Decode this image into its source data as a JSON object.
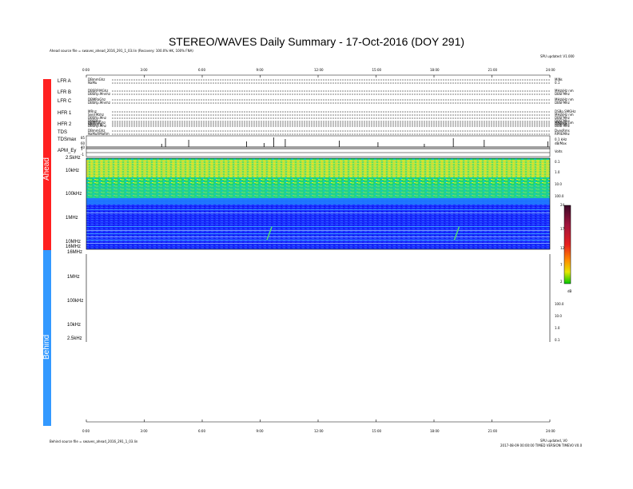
{
  "title": "STEREO/WAVES Daily Summary - 17-Oct-2016 (DOY 291)",
  "ahead_source": "Ahead source file = swaves_ahead_2016_291_1_03.lin (Recovery: 100.0% HK, 100% FNA)",
  "behind_source": "Behind source file = swaves_ahead_2016_291_1_03.lin",
  "top_right_note": "SPU updated: V1.000",
  "bottom_right_note1": "SPU updated, V0",
  "bottom_right_note2": "2017-08-09 00:00:00 TIMED VERSION TIMEV0 V0.0",
  "ahead_label": "Ahead",
  "behind_label": "Behind",
  "time_ticks": [
    "0:00",
    "3:00",
    "6:00",
    "9:00",
    "12:00",
    "15:00",
    "18:00",
    "21:00",
    "24:00"
  ],
  "rows": [
    {
      "name": "LFR A",
      "left": [
        "DBmmGhz",
        "NaMu"
      ],
      "right": [
        "MiNs",
        "0.1"
      ]
    },
    {
      "name": "LFR B",
      "left": [
        "DBSRP.MGhz",
        "DBSRp.Mnnhz"
      ],
      "right": [
        "MHzkHz nm",
        "DBSFMhz"
      ]
    },
    {
      "name": "LFR C",
      "left": [
        "DBMRaGhz",
        "DBSRp.Mnnhz"
      ],
      "right": [
        "MHzkHz nm",
        "DBSFMhz"
      ]
    },
    {
      "name": "HFR 1",
      "left": [
        "MRnz",
        "SenFMzhz",
        "DBSRp.Mnz",
        "DBSRhz",
        "SRmmhz"
      ],
      "right": [
        "DSBp.SMGHz",
        "MHzkHz nm",
        "DBSFMhz",
        "DBSFMhz",
        "DBSFMhz"
      ]
    },
    {
      "name": "HFR 2",
      "left": [
        "DBMRaGhz",
        "DBSRp.Mhz"
      ],
      "right": [
        "MHzkHz nm",
        "DBSFMhz"
      ]
    },
    {
      "name": "TDS",
      "left": [
        "DBmmGhz",
        "NaMuRMaRm"
      ],
      "right": [
        "DvesRms",
        "RPREMhz"
      ]
    }
  ],
  "tdsmax_label": "TDSmax",
  "tdsmax_ticks": [
    "85",
    "60",
    "40"
  ],
  "tdsmax_right": [
    "0.1 kHz",
    "dB/Max"
  ],
  "apm_label": "APM_Ey",
  "apm_right": "Volts",
  "apm_ticks": [
    "1",
    "-1"
  ],
  "freq_ticks": [
    "2.5kHz",
    "10kHz",
    "100kHz",
    "1MHz",
    "10MHz",
    "16MHz"
  ],
  "behind_freq_ticks": [
    "16MHz",
    "1MHz",
    "100kHz",
    "10kHz",
    "2.5kHz"
  ],
  "right_ticks": [
    "0.1",
    "1.0",
    "10.0",
    "100.0"
  ],
  "colorbar": {
    "ticks": [
      "24",
      "17",
      "12",
      "7",
      "2"
    ],
    "unit": "dB"
  },
  "chart_data": {
    "type": "heatmap",
    "title": "STEREO/WAVES Daily Summary - 17-Oct-2016 (DOY 291)",
    "x_range_hours": [
      0,
      24
    ],
    "x_ticks": [
      "0:00",
      "3:00",
      "6:00",
      "9:00",
      "12:00",
      "15:00",
      "18:00",
      "21:00",
      "24:00"
    ],
    "y_ticks": [
      "2.5kHz",
      "10kHz",
      "100kHz",
      "1MHz",
      "10MHz",
      "16MHz"
    ],
    "colorbar_range_db": [
      2,
      24
    ],
    "bands": [
      {
        "freq": "2.5kHz-10kHz",
        "intensity_db": 17
      },
      {
        "freq": "10kHz-100kHz",
        "intensity_db": 10
      },
      {
        "freq": "100kHz-1MHz",
        "intensity_db": 4
      },
      {
        "freq": "1MHz-16MHz",
        "intensity_db": 3
      }
    ],
    "tdsmax_spikes_hours": [
      3.9,
      4.1,
      5.3,
      8.3,
      9.2,
      9.7,
      10.3,
      13.1,
      15.1,
      17.5,
      19.0,
      20.6,
      23.9
    ],
    "type_iii_bursts_hours": [
      9.6,
      19.3
    ]
  }
}
